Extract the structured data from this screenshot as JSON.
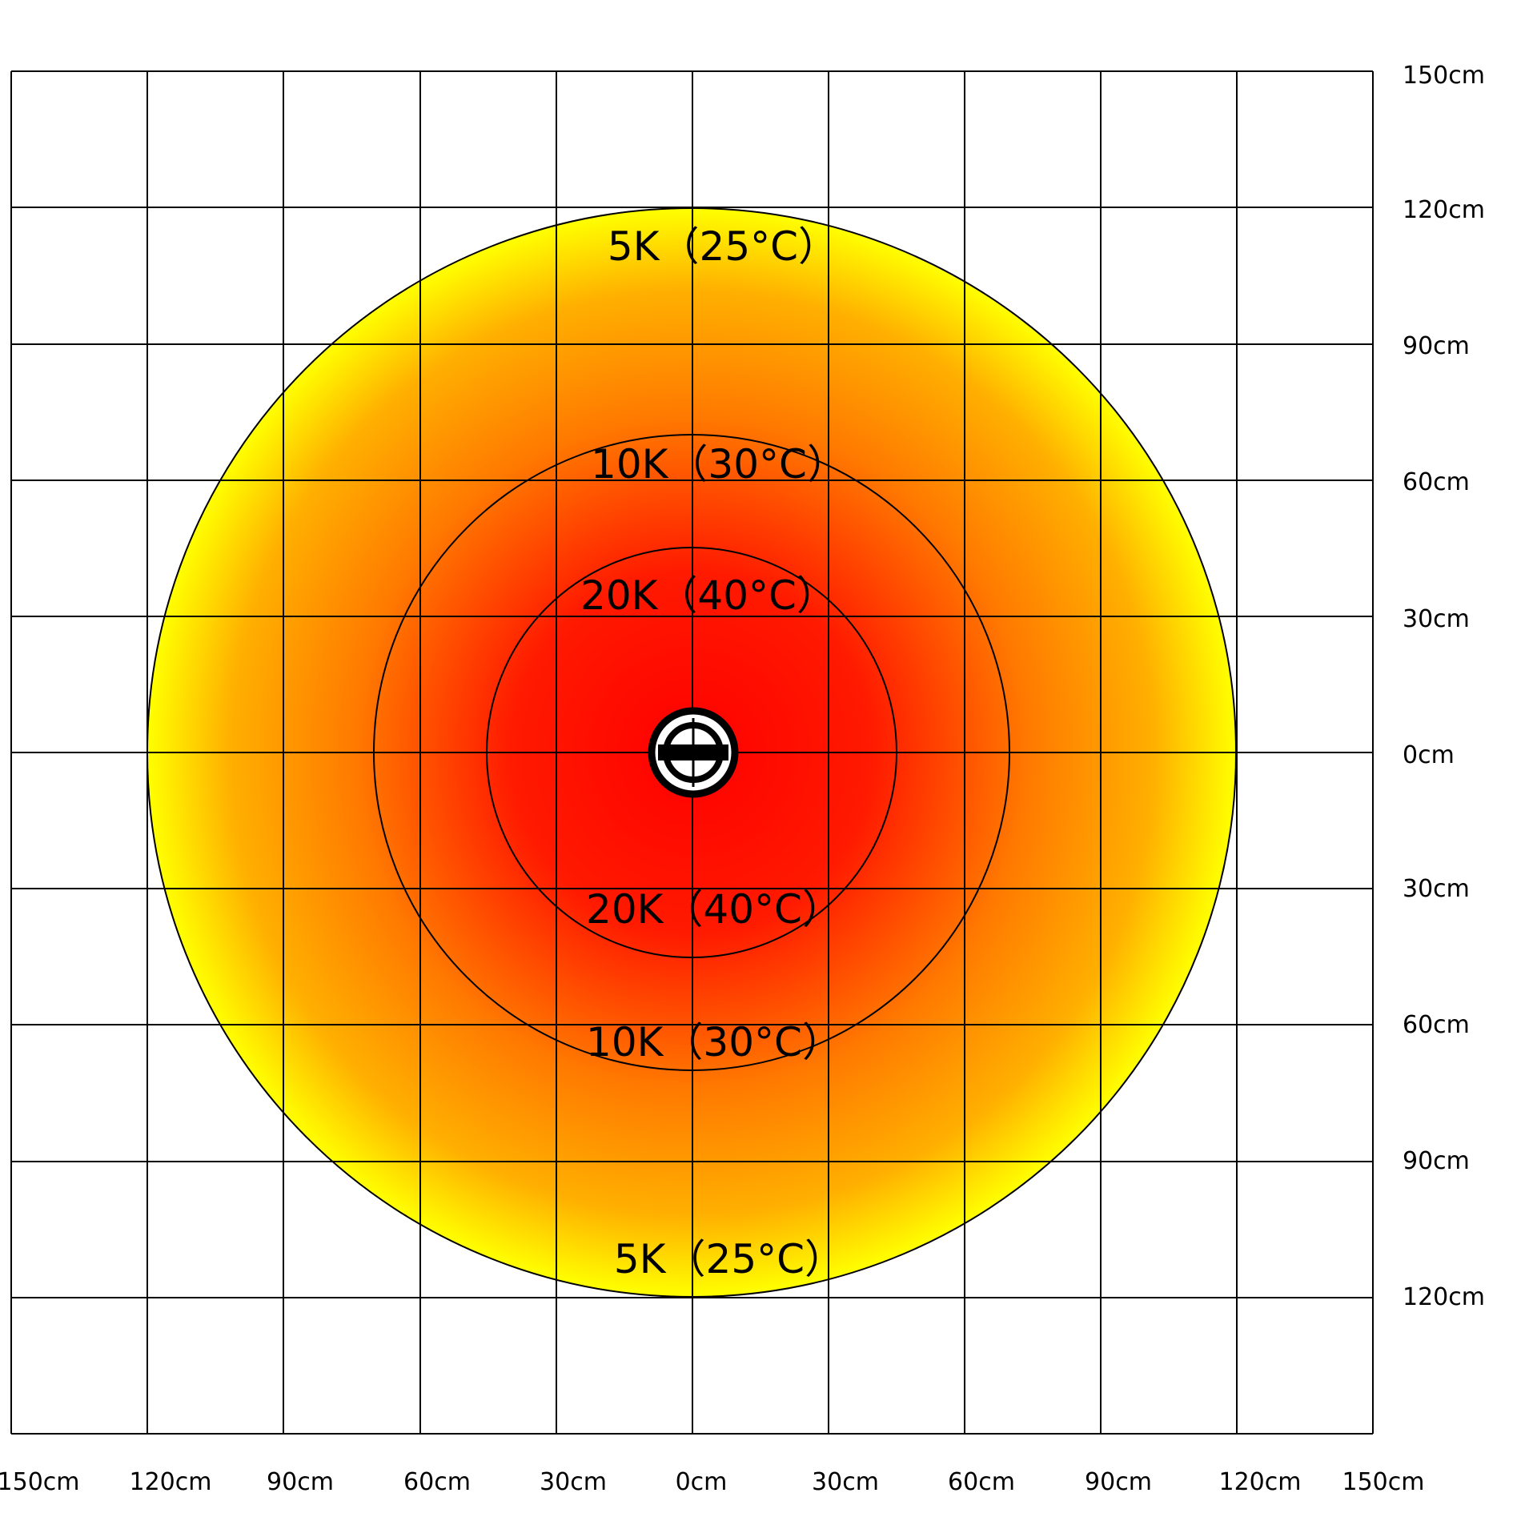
{
  "x_axis": {
    "ticks": [
      "150cm",
      "120cm",
      "90cm",
      "60cm",
      "30cm",
      "0cm",
      "30cm",
      "60cm",
      "90cm",
      "120cm",
      "150cm"
    ]
  },
  "y_axis": {
    "ticks": [
      "150cm",
      "120cm",
      "90cm",
      "60cm",
      "30cm",
      "0cm",
      "30cm",
      "60cm",
      "90cm",
      "120cm"
    ]
  },
  "zones": [
    {
      "label_top": "5K（25°C）",
      "label_bottom": "5K（25°C）",
      "radius_cm": 120
    },
    {
      "label_top": "10K（30°C）",
      "label_bottom": "10K（30°C）",
      "radius_cm": 70
    },
    {
      "label_top": "20K（40°C）",
      "label_bottom": "20K（40°C）",
      "radius_cm": 45
    }
  ],
  "colors": {
    "center": "#ff0000",
    "mid": "#ff7a00",
    "edge": "#ffff00",
    "grid": "#000000",
    "background": "#ffffff"
  },
  "heater_icon": "heater-symbol-icon"
}
